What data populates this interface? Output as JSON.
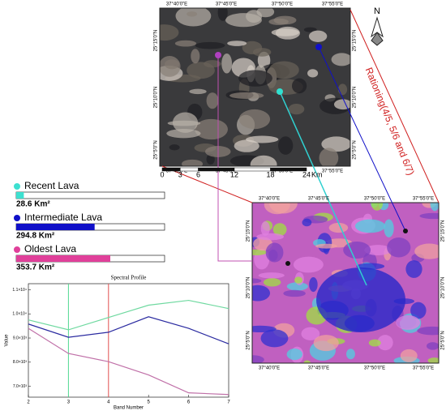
{
  "top_map": {
    "lon_labels": [
      "37°40'0\"E",
      "37°45'0\"E",
      "37°50'0\"E",
      "37°55'0\"E"
    ],
    "lat_labels": [
      "25°15'0\"N",
      "25°10'0\"N",
      "25°5'0\"N"
    ],
    "scale_ticks": [
      0,
      3,
      6,
      12,
      18,
      24
    ],
    "scale_unit": "Km"
  },
  "north_label": "N",
  "ratio_label": "Rationing(4/5, 5/6 and 6/7)",
  "bottom_map": {
    "lon_labels": [
      "37°40'0\"E",
      "37°45'0\"E",
      "37°50'0\"E",
      "37°55'0\"E"
    ],
    "lat_labels": [
      "25°15'0\"N",
      "25°10'0\"N",
      "25°5'0\"N"
    ]
  },
  "legend": [
    {
      "name": "Recent Lava",
      "color": "#3de0d0",
      "area": 28.6,
      "area_label": "28.6 Km²"
    },
    {
      "name": "Intermediate Lava",
      "color": "#1010c8",
      "area": 294.8,
      "area_label": "294.8 Km²"
    },
    {
      "name": "Oldest Lava",
      "color": "#e0409a",
      "area": 353.7,
      "area_label": "353.7 Km²"
    }
  ],
  "chart_data": {
    "type": "line",
    "title": "Spectral Profile",
    "x_label": "Band Number",
    "y_label": "Value",
    "x": [
      2,
      3,
      4,
      5,
      6,
      7
    ],
    "xlim": [
      2,
      7
    ],
    "xticks": [
      2,
      3,
      4,
      5,
      6,
      7
    ],
    "ylim": [
      6550,
      11250
    ],
    "yticks": [
      {
        "value": 7000,
        "label": "7.0×10³"
      },
      {
        "value": 8000,
        "label": "8.0×10³"
      },
      {
        "value": 9000,
        "label": "9.0×10³"
      },
      {
        "value": 10000,
        "label": "1.0×10⁴"
      },
      {
        "value": 11000,
        "label": "1.1×10⁴"
      }
    ],
    "series": [
      {
        "color": "#6fd9a0",
        "values": [
          9750,
          9340,
          9850,
          10360,
          10560,
          10220
        ]
      },
      {
        "color": "#2a2aa0",
        "values": [
          9580,
          9030,
          9240,
          9880,
          9400,
          8760
        ]
      },
      {
        "color": "#c070a8",
        "values": [
          9400,
          8360,
          8020,
          7470,
          6730,
          6660
        ]
      }
    ],
    "vlines": [
      {
        "x": 3,
        "color": "#50d890"
      },
      {
        "x": 4,
        "color": "#e05050"
      }
    ]
  }
}
